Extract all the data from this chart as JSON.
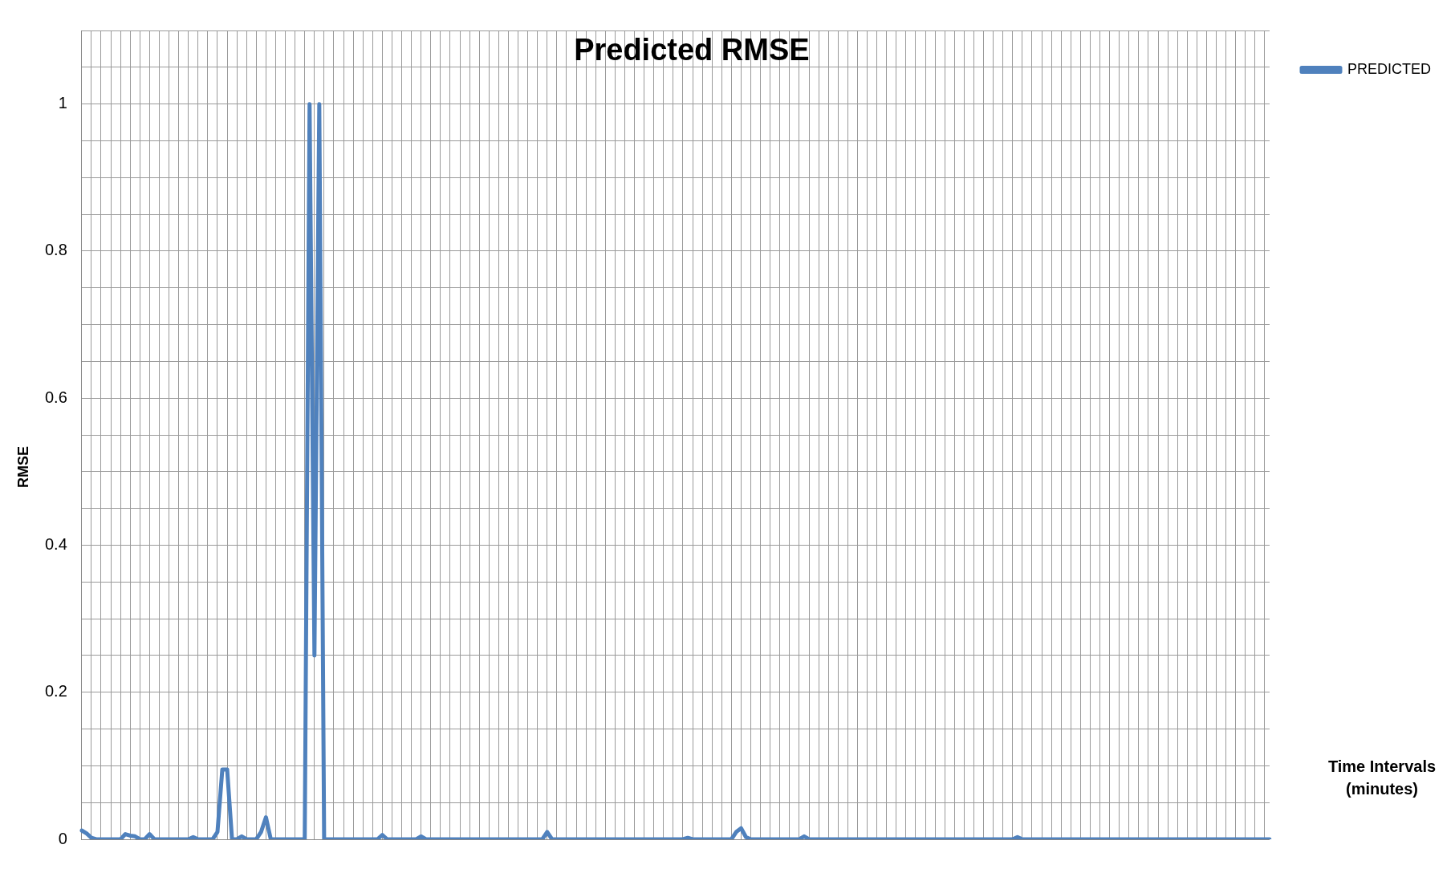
{
  "chart_data": {
    "type": "line",
    "title": "Predicted RMSE",
    "ylabel": "RMSE",
    "xlabel": "Time Intervals (minutes)",
    "categories": [
      null,
      null,
      null,
      null,
      null,
      null,
      null,
      null,
      null,
      null,
      null,
      null,
      null,
      null,
      null,
      null,
      null,
      null,
      null,
      null,
      null,
      null,
      null,
      null,
      null,
      null,
      null,
      null,
      null,
      null,
      null,
      null,
      null,
      null,
      null,
      null,
      null,
      null,
      null,
      null,
      null,
      null,
      null,
      null,
      null,
      null,
      null,
      null,
      null,
      null,
      null,
      null,
      null,
      null,
      null,
      null,
      null,
      null,
      null,
      null,
      null,
      null,
      null,
      null,
      null,
      null,
      null,
      null,
      null,
      null,
      null,
      null,
      null,
      null,
      null,
      null,
      null,
      null,
      null,
      null,
      null,
      null,
      null,
      null,
      null,
      null,
      null,
      null,
      null,
      null,
      null,
      null,
      null,
      null,
      null,
      null,
      null,
      null,
      null,
      null,
      null,
      null,
      null,
      null,
      null,
      null,
      null,
      null,
      null,
      null,
      null,
      null,
      null,
      null,
      null,
      null,
      null,
      null,
      null,
      null,
      null,
      null,
      null,
      null,
      null,
      null,
      null,
      null,
      null,
      null,
      null,
      null,
      null,
      null,
      null,
      null,
      null,
      null,
      null,
      null,
      null,
      null,
      null,
      null,
      null,
      null,
      null,
      null,
      null,
      null,
      null,
      null,
      null,
      null,
      null,
      null,
      null,
      null,
      null,
      null,
      null,
      null,
      null,
      null,
      null,
      null,
      null,
      null,
      null,
      null,
      null,
      null,
      null,
      null,
      null,
      null,
      null,
      null,
      null,
      null,
      null,
      null,
      null,
      null,
      null,
      null,
      null,
      null,
      null,
      null,
      null,
      null,
      null,
      null,
      null,
      null,
      null,
      null,
      null,
      null,
      null,
      null,
      null,
      null,
      null,
      null,
      null,
      null,
      null,
      null,
      null,
      null,
      null,
      null,
      null,
      null,
      null,
      null,
      null,
      null,
      null,
      null,
      null,
      null,
      null,
      null,
      null,
      null,
      null,
      null,
      null,
      null,
      null,
      null,
      null,
      null,
      null,
      null,
      null,
      null,
      null,
      null,
      null,
      null,
      null,
      null
    ],
    "series": [
      {
        "name": "PREDICTED",
        "color": "#4f81bd",
        "values": [
          0.012,
          0.008,
          0.002,
          0,
          0,
          0,
          0,
          0,
          0,
          0.007,
          0.005,
          0.004,
          0,
          0,
          0.007,
          0,
          0,
          0,
          0,
          0,
          0,
          0,
          0,
          0.003,
          0,
          0,
          0,
          0,
          0.01,
          0.095,
          0.095,
          0,
          0,
          0.004,
          0,
          0,
          0,
          0.01,
          0.03,
          0,
          0,
          0,
          0,
          0,
          0,
          0,
          0,
          1,
          0.25,
          1,
          0,
          0,
          0,
          0,
          0,
          0,
          0,
          0,
          0,
          0,
          0,
          0,
          0.006,
          0,
          0,
          0,
          0,
          0,
          0,
          0,
          0.004,
          0,
          0,
          0,
          0,
          0,
          0,
          0,
          0,
          0,
          0,
          0,
          0,
          0,
          0,
          0,
          0,
          0,
          0,
          0,
          0,
          0,
          0,
          0,
          0,
          0,
          0.01,
          0,
          0,
          0,
          0,
          0,
          0,
          0,
          0,
          0,
          0,
          0,
          0,
          0,
          0,
          0,
          0,
          0,
          0,
          0,
          0,
          0,
          0,
          0,
          0,
          0,
          0,
          0,
          0,
          0.002,
          0,
          0,
          0,
          0,
          0,
          0,
          0,
          0,
          0,
          0.01,
          0.015,
          0.003,
          0,
          0,
          0,
          0,
          0,
          0,
          0,
          0,
          0,
          0,
          0,
          0.004,
          0,
          0,
          0,
          0,
          0,
          0,
          0,
          0,
          0,
          0,
          0,
          0,
          0,
          0,
          0,
          0,
          0,
          0,
          0,
          0,
          0,
          0,
          0,
          0,
          0,
          0,
          0,
          0,
          0,
          0,
          0,
          0,
          0,
          0,
          0,
          0,
          0,
          0,
          0,
          0,
          0,
          0,
          0,
          0.003,
          0,
          0,
          0,
          0,
          0,
          0,
          0,
          0,
          0,
          0,
          0,
          0,
          0,
          0,
          0,
          0,
          0,
          0,
          0,
          0,
          0,
          0,
          0,
          0,
          0,
          0,
          0,
          0,
          0,
          0,
          0,
          0,
          0,
          0,
          0,
          0,
          0,
          0,
          0,
          0,
          0,
          0,
          0,
          0,
          0,
          0,
          0,
          0,
          0,
          0,
          0,
          0
        ]
      }
    ],
    "ylim": [
      0,
      1.1
    ],
    "yticks": [
      0,
      {
        "value": 0.05,
        "label": null
      },
      {
        "value": 0.1,
        "label": null
      },
      {
        "value": 0.15,
        "label": null
      },
      0.2,
      {
        "value": 0.25,
        "label": null
      },
      {
        "value": 0.3,
        "label": null
      },
      {
        "value": 0.35,
        "label": null
      },
      0.4,
      {
        "value": 0.45,
        "label": null
      },
      {
        "value": 0.5,
        "label": null
      },
      {
        "value": 0.55,
        "label": null
      },
      0.6,
      {
        "value": 0.65,
        "label": null
      },
      {
        "value": 0.7,
        "label": null
      },
      {
        "value": 0.75,
        "label": null
      },
      0.8,
      {
        "value": 0.85,
        "label": null
      },
      {
        "value": 0.9,
        "label": null
      },
      {
        "value": 0.95,
        "label": null
      },
      1,
      {
        "value": 1.05,
        "label": null
      },
      {
        "value": 1.1,
        "label": null
      }
    ],
    "grid": true,
    "legend": "top right",
    "tick_labels": "y",
    "marker": "none",
    "line_style": "solid"
  }
}
